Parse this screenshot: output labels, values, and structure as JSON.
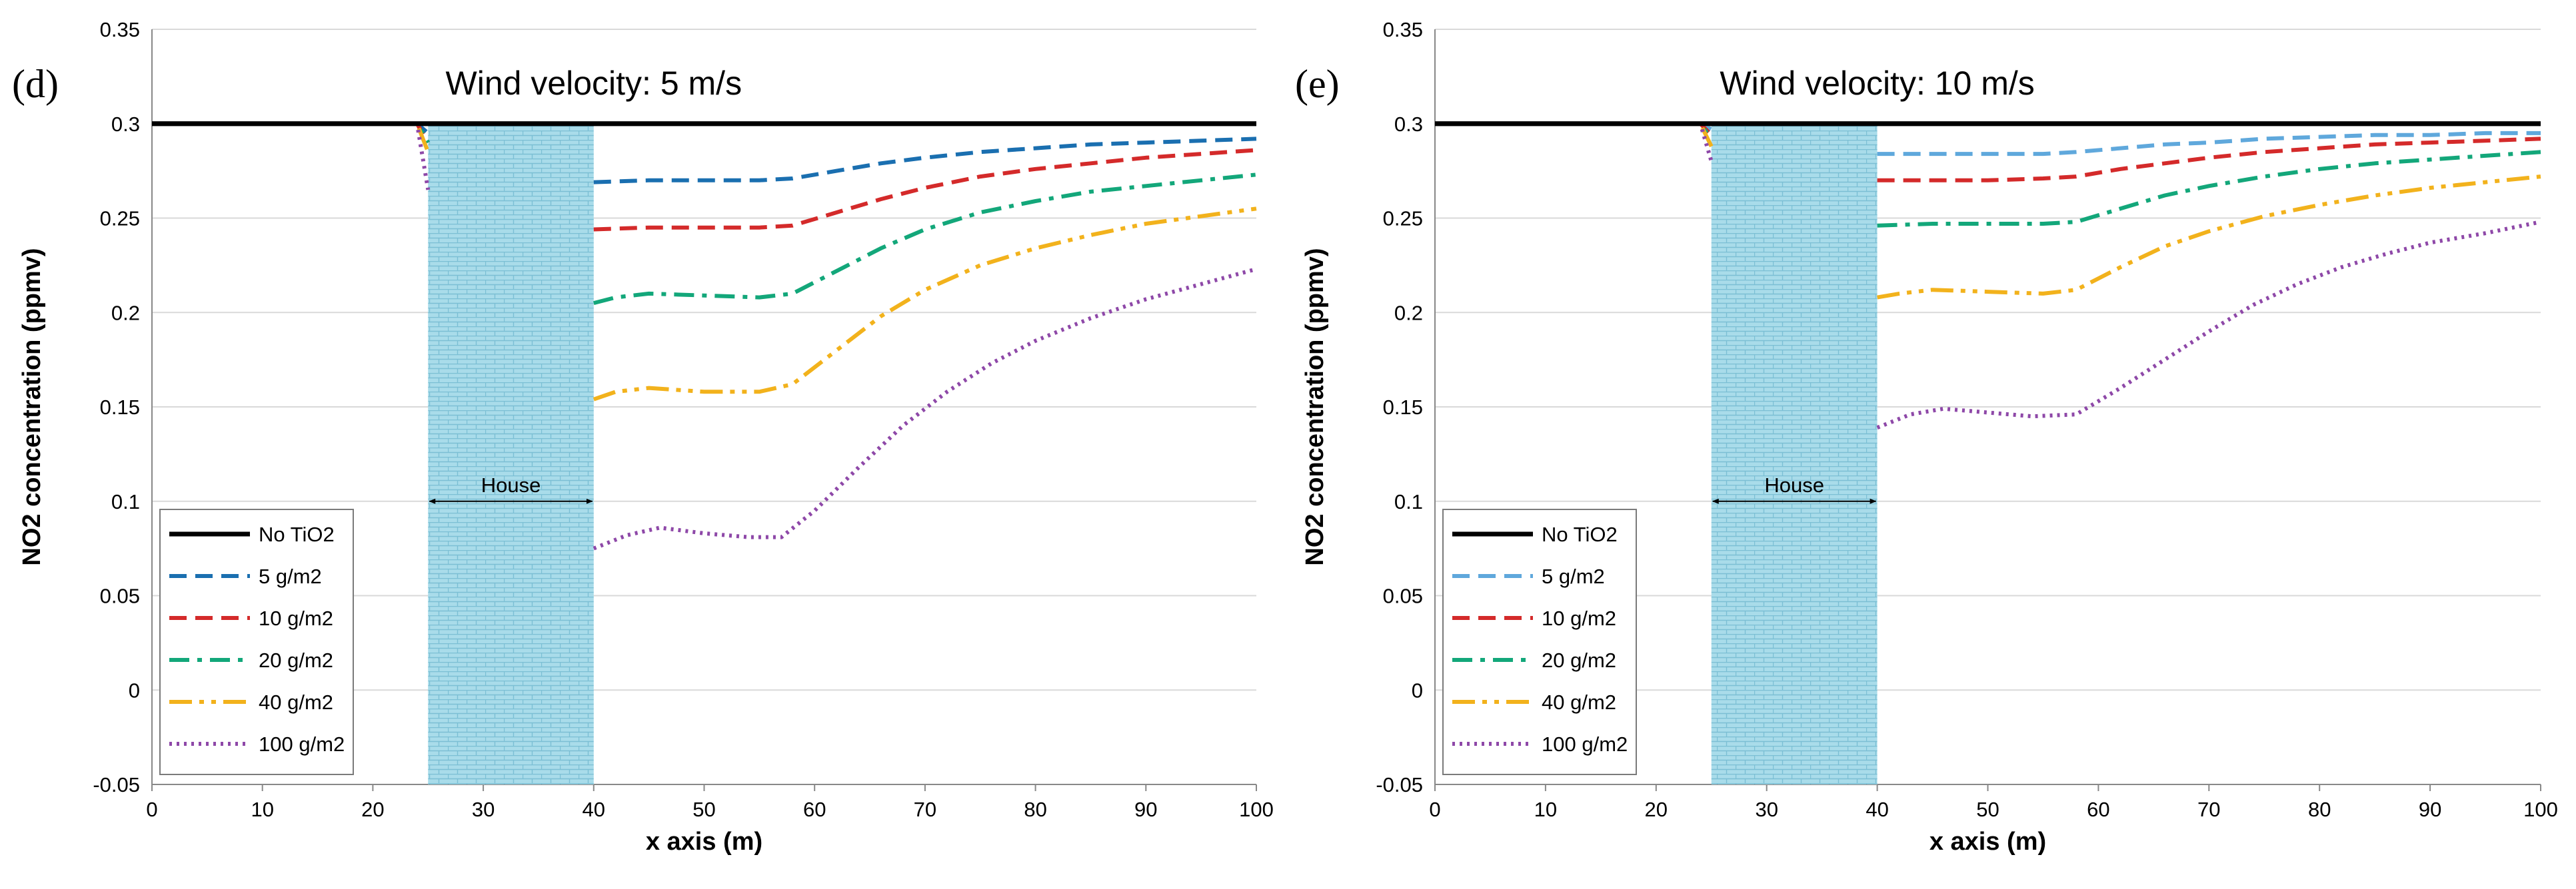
{
  "colors": {
    "no_tio2": "#000000",
    "s5_d": "#1a6fb0",
    "s5_e": "#5fa8dc",
    "s10": "#d42a2a",
    "s20": "#13a77a",
    "s40": "#f2b21c",
    "s100": "#8e48a8",
    "house_fill": "#a9dcea",
    "house_grid": "#7bbfd4",
    "gridline": "#d9d9d9",
    "axis": "#888888"
  },
  "chart_data": [
    {
      "type": "line",
      "panel_label": "(d)",
      "title": "Wind velocity: 5 m/s",
      "xlabel": "x axis (m)",
      "ylabel": "NO2 concentration (ppmv)",
      "xlim": [
        0,
        100
      ],
      "ylim": [
        -0.05,
        0.35
      ],
      "xticks": [
        0,
        10,
        20,
        30,
        40,
        50,
        60,
        70,
        80,
        90,
        100
      ],
      "yticks": [
        -0.05,
        0,
        0.05,
        0.1,
        0.15,
        0.2,
        0.25,
        0.3,
        0.35
      ],
      "ytick_labels": [
        "-0.05",
        "0",
        "0.05",
        "0.1",
        "0.15",
        "0.2",
        "0.25",
        "0.3",
        "0.35"
      ],
      "grid": "horizontal",
      "legend_position": "bottom-left",
      "house": {
        "label": "House",
        "x_range": [
          25,
          40
        ],
        "arrow_y": 0.1
      },
      "series": [
        {
          "name": "No TiO2",
          "color_key": "no_tio2",
          "style": "solid",
          "x": [
            0,
            100
          ],
          "y": [
            0.3,
            0.3
          ]
        },
        {
          "name": "5 g/m2",
          "color_key": "s5_d",
          "style": "dash",
          "x": [
            0,
            24,
            25
          ],
          "y": [
            0.3,
            0.3,
            0.295
          ],
          "x2": [
            40,
            45,
            50,
            55,
            58,
            62,
            66,
            70,
            75,
            80,
            85,
            90,
            95,
            100
          ],
          "y2": [
            0.269,
            0.27,
            0.27,
            0.27,
            0.271,
            0.275,
            0.279,
            0.282,
            0.285,
            0.287,
            0.289,
            0.29,
            0.291,
            0.292
          ]
        },
        {
          "name": "10 g/m2",
          "color_key": "s10",
          "style": "dash",
          "x": [
            0,
            24,
            25
          ],
          "y": [
            0.3,
            0.3,
            0.29
          ],
          "x2": [
            40,
            45,
            50,
            55,
            58,
            62,
            66,
            70,
            75,
            80,
            85,
            90,
            95,
            100
          ],
          "y2": [
            0.244,
            0.245,
            0.245,
            0.245,
            0.246,
            0.253,
            0.26,
            0.266,
            0.272,
            0.276,
            0.279,
            0.282,
            0.284,
            0.286
          ]
        },
        {
          "name": "20 g/m2",
          "color_key": "s20",
          "style": "dashdot",
          "x": [
            0,
            24,
            25
          ],
          "y": [
            0.3,
            0.3,
            0.29
          ],
          "x2": [
            40,
            42,
            45,
            50,
            55,
            58,
            62,
            66,
            70,
            75,
            80,
            85,
            90,
            95,
            100
          ],
          "y2": [
            0.205,
            0.208,
            0.21,
            0.209,
            0.208,
            0.21,
            0.222,
            0.234,
            0.244,
            0.253,
            0.259,
            0.264,
            0.267,
            0.27,
            0.273
          ]
        },
        {
          "name": "40 g/m2",
          "color_key": "s40",
          "style": "dashdotdot",
          "x": [
            0,
            24,
            25
          ],
          "y": [
            0.3,
            0.3,
            0.285
          ],
          "x2": [
            40,
            42,
            45,
            50,
            55,
            58,
            62,
            66,
            70,
            75,
            80,
            85,
            90,
            95,
            100
          ],
          "y2": [
            0.154,
            0.158,
            0.16,
            0.158,
            0.158,
            0.162,
            0.18,
            0.198,
            0.212,
            0.225,
            0.234,
            0.241,
            0.247,
            0.251,
            0.255
          ]
        },
        {
          "name": "100 g/m2",
          "color_key": "s100",
          "style": "dot",
          "x": [
            0,
            24,
            25
          ],
          "y": [
            0.3,
            0.3,
            0.265
          ],
          "x2": [
            40,
            43,
            46,
            50,
            54,
            57,
            60,
            64,
            68,
            72,
            76,
            80,
            85,
            90,
            95,
            100
          ],
          "y2": [
            0.075,
            0.082,
            0.086,
            0.083,
            0.081,
            0.081,
            0.095,
            0.118,
            0.14,
            0.158,
            0.173,
            0.185,
            0.197,
            0.207,
            0.215,
            0.223
          ]
        }
      ]
    },
    {
      "type": "line",
      "panel_label": "(e)",
      "title": "Wind velocity: 10 m/s",
      "xlabel": "x axis (m)",
      "ylabel": "NO2 concentration (ppmv)",
      "xlim": [
        0,
        100
      ],
      "ylim": [
        -0.05,
        0.35
      ],
      "xticks": [
        0,
        10,
        20,
        30,
        40,
        50,
        60,
        70,
        80,
        90,
        100
      ],
      "yticks": [
        -0.05,
        0,
        0.05,
        0.1,
        0.15,
        0.2,
        0.25,
        0.3,
        0.35
      ],
      "ytick_labels": [
        "-0.05",
        "0",
        "0.05",
        "0.1",
        "0.15",
        "0.2",
        "0.25",
        "0.3",
        "0.35"
      ],
      "grid": "horizontal",
      "legend_position": "bottom-left",
      "house": {
        "label": "House",
        "x_range": [
          25,
          40
        ],
        "arrow_y": 0.1
      },
      "series": [
        {
          "name": "No TiO2",
          "color_key": "no_tio2",
          "style": "solid",
          "x": [
            0,
            100
          ],
          "y": [
            0.3,
            0.3
          ]
        },
        {
          "name": "5 g/m2",
          "color_key": "s5_e",
          "style": "dash",
          "x": [
            0,
            24,
            25
          ],
          "y": [
            0.3,
            0.3,
            0.297
          ],
          "x2": [
            40,
            45,
            50,
            55,
            58,
            62,
            66,
            70,
            75,
            80,
            85,
            90,
            95,
            100
          ],
          "y2": [
            0.284,
            0.284,
            0.284,
            0.284,
            0.285,
            0.287,
            0.289,
            0.29,
            0.292,
            0.293,
            0.294,
            0.294,
            0.295,
            0.295
          ]
        },
        {
          "name": "10 g/m2",
          "color_key": "s10",
          "style": "dash",
          "x": [
            0,
            24,
            25
          ],
          "y": [
            0.3,
            0.3,
            0.294
          ],
          "x2": [
            40,
            45,
            50,
            55,
            58,
            62,
            66,
            70,
            75,
            80,
            85,
            90,
            95,
            100
          ],
          "y2": [
            0.27,
            0.27,
            0.27,
            0.271,
            0.272,
            0.276,
            0.279,
            0.282,
            0.285,
            0.287,
            0.289,
            0.29,
            0.291,
            0.292
          ]
        },
        {
          "name": "20 g/m2",
          "color_key": "s20",
          "style": "dashdot",
          "x": [
            0,
            24,
            25
          ],
          "y": [
            0.3,
            0.3,
            0.292
          ],
          "x2": [
            40,
            45,
            50,
            55,
            58,
            62,
            66,
            70,
            75,
            80,
            85,
            90,
            95,
            100
          ],
          "y2": [
            0.246,
            0.247,
            0.247,
            0.247,
            0.248,
            0.255,
            0.262,
            0.267,
            0.272,
            0.276,
            0.279,
            0.281,
            0.283,
            0.285
          ]
        },
        {
          "name": "40 g/m2",
          "color_key": "s40",
          "style": "dashdotdot",
          "x": [
            0,
            24,
            25
          ],
          "y": [
            0.3,
            0.3,
            0.288
          ],
          "x2": [
            40,
            42,
            45,
            50,
            55,
            58,
            62,
            66,
            70,
            75,
            80,
            85,
            90,
            95,
            100
          ],
          "y2": [
            0.208,
            0.21,
            0.212,
            0.211,
            0.21,
            0.212,
            0.224,
            0.235,
            0.243,
            0.251,
            0.257,
            0.262,
            0.266,
            0.269,
            0.272
          ]
        },
        {
          "name": "100 g/m2",
          "color_key": "s100",
          "style": "dot",
          "x": [
            0,
            24,
            25
          ],
          "y": [
            0.3,
            0.3,
            0.28
          ],
          "x2": [
            40,
            43,
            46,
            50,
            54,
            58,
            62,
            66,
            70,
            74,
            78,
            82,
            86,
            90,
            95,
            100
          ],
          "y2": [
            0.139,
            0.146,
            0.149,
            0.147,
            0.145,
            0.146,
            0.16,
            0.175,
            0.19,
            0.204,
            0.215,
            0.224,
            0.231,
            0.237,
            0.242,
            0.248
          ]
        }
      ]
    }
  ]
}
